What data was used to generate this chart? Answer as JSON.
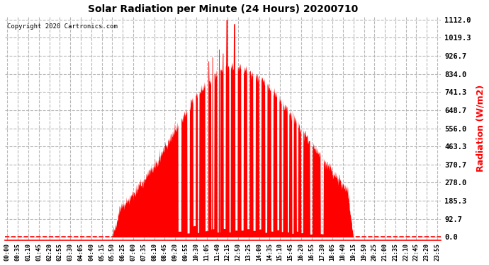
{
  "title": "Solar Radiation per Minute (24 Hours) 20200710",
  "ylabel": "Radiation (W/m2)",
  "copyright_text": "Copyright 2020 Cartronics.com",
  "bar_color": "#ff0000",
  "background_color": "#ffffff",
  "grid_color": "#b0b0b0",
  "dashed_line_color": "#ff0000",
  "yticks": [
    0.0,
    92.7,
    185.3,
    278.0,
    370.7,
    463.3,
    556.0,
    648.7,
    741.3,
    834.0,
    926.7,
    1019.3,
    1112.0
  ],
  "ymax": 1112.0,
  "ymin": 0.0,
  "total_minutes": 1440,
  "x_tick_labels": [
    "00:00",
    "00:35",
    "01:10",
    "01:45",
    "02:20",
    "02:55",
    "03:30",
    "04:05",
    "04:40",
    "05:15",
    "05:50",
    "06:25",
    "07:00",
    "07:35",
    "08:10",
    "08:45",
    "09:20",
    "09:55",
    "10:30",
    "11:05",
    "11:40",
    "12:15",
    "12:50",
    "13:25",
    "14:00",
    "14:35",
    "15:10",
    "15:45",
    "16:20",
    "16:55",
    "17:30",
    "18:05",
    "18:40",
    "19:15",
    "19:50",
    "20:25",
    "21:00",
    "21:35",
    "22:10",
    "22:45",
    "23:20",
    "23:55"
  ]
}
